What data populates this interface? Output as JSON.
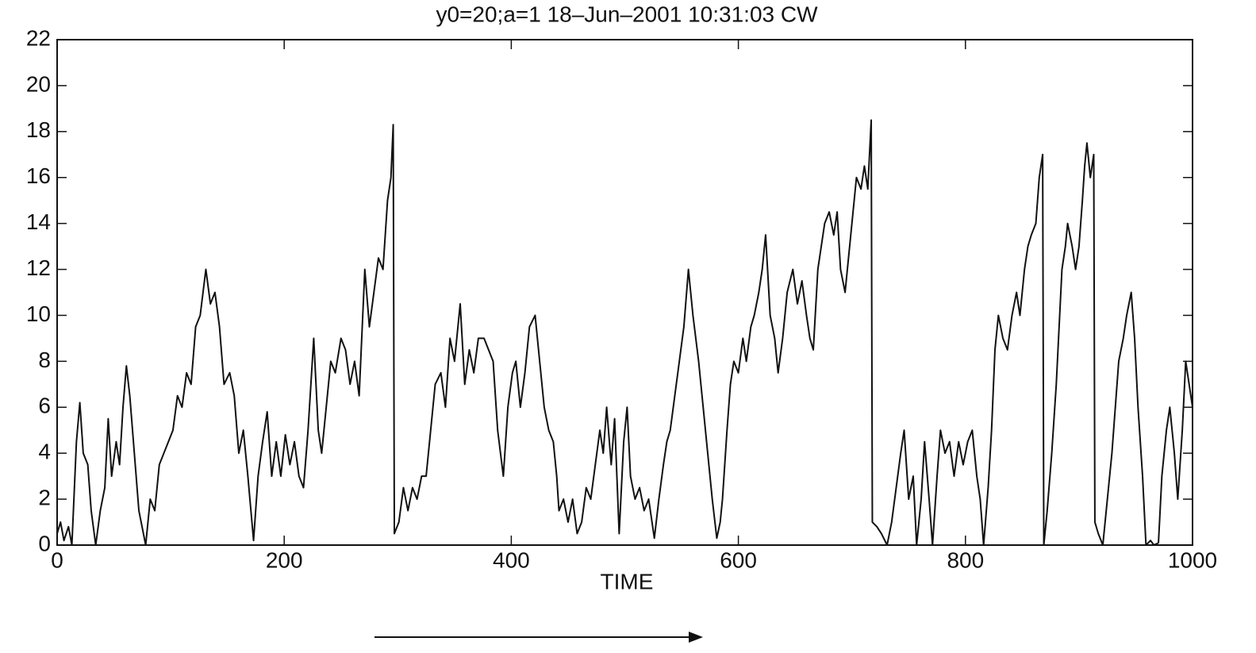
{
  "chart_data": {
    "type": "line",
    "title": "y0=20;a=1  18–Jun–2001 10:31:03  CW",
    "xlabel": "TIME",
    "color": "#111111",
    "xlim": [
      0,
      1000
    ],
    "xticks": [
      0,
      200,
      400,
      600,
      800,
      1000
    ],
    "ylim": [
      0,
      22
    ],
    "yticks": [
      0,
      2,
      4,
      6,
      8,
      10,
      12,
      14,
      16,
      18,
      20,
      22
    ],
    "x": [
      0,
      3,
      6,
      10,
      13,
      17,
      20,
      23,
      27,
      30,
      34,
      38,
      42,
      45,
      48,
      52,
      55,
      58,
      61,
      64,
      68,
      72,
      78,
      82,
      86,
      90,
      94,
      98,
      102,
      106,
      110,
      114,
      118,
      122,
      126,
      131,
      135,
      139,
      143,
      147,
      152,
      156,
      160,
      164,
      168,
      173,
      177,
      181,
      185,
      189,
      193,
      197,
      201,
      205,
      209,
      213,
      217,
      221,
      226,
      230,
      233,
      237,
      241,
      245,
      250,
      254,
      258,
      262,
      266,
      271,
      275,
      279,
      283,
      287,
      291,
      294,
      296,
      297,
      301,
      305,
      309,
      313,
      317,
      321,
      325,
      329,
      333,
      338,
      342,
      346,
      350,
      355,
      359,
      363,
      367,
      371,
      376,
      380,
      384,
      388,
      393,
      397,
      401,
      404,
      408,
      412,
      416,
      421,
      425,
      429,
      433,
      437,
      440,
      442,
      446,
      450,
      454,
      458,
      462,
      466,
      470,
      474,
      478,
      481,
      484,
      488,
      491,
      495,
      499,
      502,
      505,
      509,
      513,
      517,
      521,
      526,
      530,
      534,
      537,
      540,
      544,
      548,
      552,
      556,
      560,
      565,
      569,
      573,
      577,
      581,
      584,
      586,
      590,
      593,
      596,
      600,
      604,
      607,
      611,
      614,
      618,
      621,
      624,
      628,
      632,
      635,
      639,
      643,
      648,
      652,
      656,
      660,
      663,
      666,
      670,
      673,
      676,
      680,
      684,
      687,
      690,
      694,
      698,
      701,
      704,
      708,
      711,
      714,
      717,
      718,
      722,
      726,
      731,
      735,
      739,
      743,
      746,
      750,
      754,
      757,
      761,
      764,
      768,
      771,
      775,
      778,
      782,
      786,
      790,
      794,
      798,
      802,
      806,
      810,
      813,
      816,
      820,
      823,
      826,
      829,
      833,
      837,
      841,
      845,
      848,
      852,
      855,
      858,
      862,
      865,
      868,
      869,
      872,
      876,
      880,
      883,
      885,
      888,
      890,
      894,
      897,
      900,
      903,
      905,
      907,
      910,
      913,
      914,
      917,
      921,
      925,
      929,
      932,
      935,
      939,
      942,
      946,
      949,
      952,
      956,
      959,
      963,
      966,
      970,
      973,
      977,
      980,
      984,
      987,
      991,
      994,
      997,
      1000
    ],
    "values": [
      0.5,
      1,
      0.2,
      0.8,
      0,
      4.5,
      6.2,
      4,
      3.5,
      1.5,
      0,
      1.5,
      2.5,
      5.5,
      3,
      4.5,
      3.5,
      6,
      7.8,
      6.5,
      4,
      1.5,
      0,
      2,
      1.5,
      3.5,
      4,
      4.5,
      5,
      6.5,
      6,
      7.5,
      7,
      9.5,
      10,
      12,
      10.5,
      11,
      9.5,
      7,
      7.5,
      6.5,
      4,
      5,
      3,
      0.2,
      3,
      4.5,
      5.8,
      3,
      4.5,
      3,
      4.8,
      3.5,
      4.5,
      3,
      2.5,
      5,
      9,
      5,
      4,
      6,
      8,
      7.5,
      9,
      8.5,
      7,
      8,
      6.5,
      12,
      9.5,
      11,
      12.5,
      12,
      15,
      16,
      18.3,
      0.5,
      1,
      2.5,
      1.5,
      2.5,
      2,
      3,
      3,
      5,
      7,
      7.5,
      6,
      9,
      8,
      10.5,
      7,
      8.5,
      7.5,
      9,
      9,
      8.5,
      8,
      5,
      3,
      6,
      7.5,
      8,
      6,
      7.5,
      9.5,
      10,
      8,
      6,
      5,
      4.5,
      3,
      1.5,
      2,
      1,
      2,
      0.5,
      1,
      2.5,
      2,
      3.5,
      5,
      4,
      6,
      3.5,
      5.5,
      0.5,
      4.5,
      6,
      3,
      2,
      2.5,
      1.5,
      2,
      0.3,
      2,
      3.5,
      4.5,
      5,
      6.5,
      8,
      9.5,
      12,
      10,
      8,
      6,
      4,
      2,
      0.3,
      1,
      2,
      5,
      7,
      8,
      7.5,
      9,
      8,
      9.5,
      10,
      11,
      12,
      13.5,
      10,
      9,
      7.5,
      9,
      11,
      12,
      10.5,
      11.5,
      10,
      9,
      8.5,
      12,
      13,
      14,
      14.5,
      13.5,
      14.5,
      12,
      11,
      13,
      14.5,
      16,
      15.5,
      16.5,
      15.5,
      18.5,
      1,
      0.8,
      0.5,
      0,
      1,
      2.5,
      4,
      5,
      2,
      3,
      0,
      2,
      4.5,
      2,
      0,
      3,
      5,
      4,
      4.5,
      3,
      4.5,
      3.5,
      4.5,
      5,
      3,
      2,
      0,
      2.5,
      5,
      8.5,
      10,
      9,
      8.5,
      10,
      11,
      10,
      12,
      13,
      13.5,
      14,
      16,
      17,
      0,
      1.5,
      4,
      7,
      10,
      12,
      13,
      14,
      13,
      12,
      13,
      15,
      16.5,
      17.5,
      16,
      17,
      1,
      0.5,
      0,
      2,
      4,
      6,
      8,
      9,
      10,
      11,
      9,
      6,
      3,
      0,
      0.2,
      0,
      0.1,
      3,
      5,
      6,
      4,
      2,
      5,
      8,
      7,
      6
    ]
  }
}
